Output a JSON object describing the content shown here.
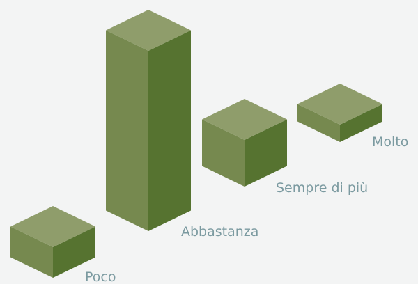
{
  "labels": [
    "Poco",
    "Abbastanza",
    "Sempre di più",
    "Molto"
  ]
}
